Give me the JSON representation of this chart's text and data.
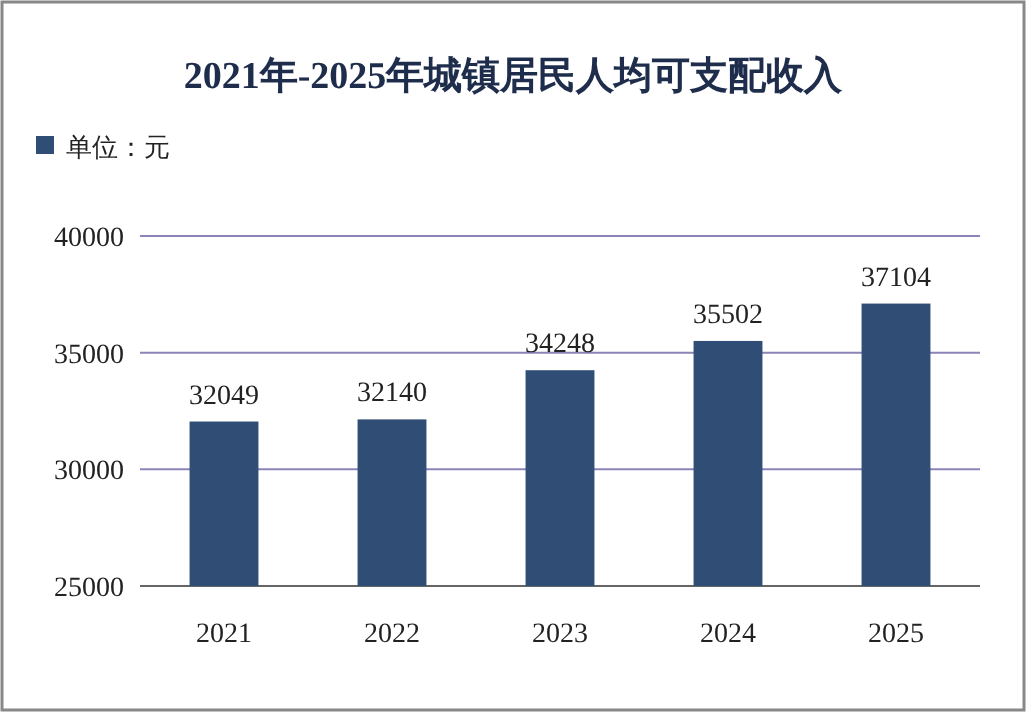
{
  "chart_data": {
    "type": "bar",
    "title": "2021年-2025年城镇居民人均可支配收入",
    "categories": [
      "2021",
      "2022",
      "2023",
      "2024",
      "2025"
    ],
    "series": [
      {
        "name": "单位：元",
        "color": "#2f4d75",
        "values": [
          32049,
          32140,
          34248,
          35502,
          37104
        ]
      }
    ],
    "ylim": [
      25000,
      40000
    ],
    "yticks": [
      25000,
      30000,
      35000,
      40000
    ],
    "grid": "y",
    "legend": "top left",
    "data_labels": true
  }
}
